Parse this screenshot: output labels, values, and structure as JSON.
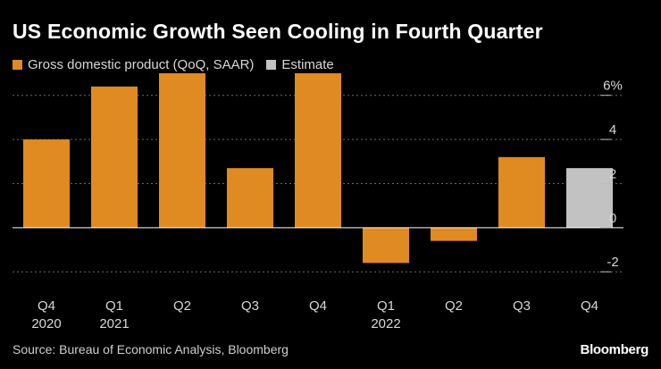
{
  "title": "US Economic Growth Seen Cooling in Fourth Quarter",
  "legend": [
    {
      "label": "Gross domestic product (QoQ, SAAR)",
      "color": "#e08a22"
    },
    {
      "label": "Estimate",
      "color": "#c2c2c2"
    }
  ],
  "source": "Source: Bureau of Economic Analysis, Bloomberg",
  "brand": "Bloomberg",
  "chart_data": {
    "type": "bar",
    "categories": [
      "Q4",
      "Q1",
      "Q2",
      "Q3",
      "Q4",
      "Q1",
      "Q2",
      "Q3",
      "Q4"
    ],
    "year_labels": [
      "2020",
      "2021",
      "",
      "",
      "",
      "2022",
      "",
      "",
      ""
    ],
    "values": [
      4.0,
      6.4,
      7.0,
      2.7,
      7.0,
      -1.6,
      -0.6,
      3.2,
      2.7
    ],
    "estimate": [
      false,
      false,
      false,
      false,
      false,
      false,
      false,
      false,
      true
    ],
    "ylim": [
      -2.6,
      7.0
    ],
    "yticks": [
      -2,
      0,
      2,
      4,
      6
    ],
    "ytick_labels": [
      "-2",
      "0",
      "2",
      "4",
      "6%"
    ],
    "grid": true,
    "colors": {
      "actual": "#e08a22",
      "estimate": "#c2c2c2",
      "grid": "#6a6a6a",
      "zero": "#ffffff"
    }
  }
}
